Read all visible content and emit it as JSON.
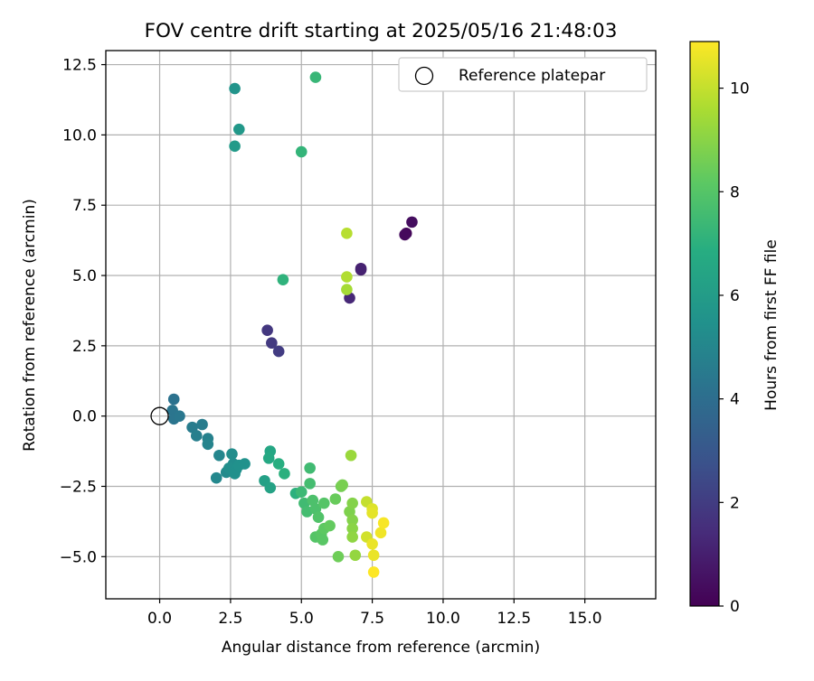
{
  "chart_data": {
    "type": "scatter",
    "title": "FOV centre drift starting at 2025/05/16 21:48:03",
    "xlabel": "Angular distance from reference (arcmin)",
    "ylabel": "Rotation from reference (arcmin)",
    "xlim": [
      -1.9,
      17.5
    ],
    "ylim": [
      -6.5,
      13.0
    ],
    "xticks": [
      0.0,
      2.5,
      5.0,
      7.5,
      10.0,
      12.5,
      15.0
    ],
    "xtick_labels": [
      "0.0",
      "2.5",
      "5.0",
      "7.5",
      "10.0",
      "12.5",
      "15.0"
    ],
    "yticks": [
      -5.0,
      -2.5,
      0.0,
      2.5,
      5.0,
      7.5,
      10.0,
      12.5
    ],
    "ytick_labels": [
      "−5.0",
      "−2.5",
      "0.0",
      "2.5",
      "5.0",
      "7.5",
      "10.0",
      "12.5"
    ],
    "grid": true,
    "legend": {
      "position": "top-right",
      "entries": [
        {
          "label": "Reference platepar",
          "marker": "open-circle",
          "x": 0.0,
          "y": 0.0
        }
      ]
    },
    "colorbar": {
      "label": "Hours from first FF file",
      "colormap": "viridis",
      "range": [
        0,
        10.9
      ],
      "ticks": [
        0,
        2,
        4,
        6,
        8,
        10
      ],
      "tick_labels": [
        "0",
        "2",
        "4",
        "6",
        "8",
        "10"
      ]
    },
    "series": [
      {
        "points": [
          {
            "x": 8.7,
            "y": 6.5,
            "h": 0.2
          },
          {
            "x": 8.65,
            "y": 6.45,
            "h": 0.3
          },
          {
            "x": 8.9,
            "y": 6.9,
            "h": 0.4
          },
          {
            "x": 7.1,
            "y": 5.2,
            "h": 1.0
          },
          {
            "x": 7.1,
            "y": 5.25,
            "h": 1.1
          },
          {
            "x": 6.7,
            "y": 4.2,
            "h": 1.3
          },
          {
            "x": 3.8,
            "y": 3.05,
            "h": 1.8
          },
          {
            "x": 3.95,
            "y": 2.6,
            "h": 1.9
          },
          {
            "x": 4.2,
            "y": 2.3,
            "h": 2.0
          },
          {
            "x": 0.5,
            "y": 0.6,
            "h": 4.2
          },
          {
            "x": 0.45,
            "y": 0.2,
            "h": 4.3
          },
          {
            "x": 0.5,
            "y": -0.1,
            "h": 4.3
          },
          {
            "x": 0.7,
            "y": 0.0,
            "h": 4.4
          },
          {
            "x": 1.15,
            "y": -0.4,
            "h": 4.6
          },
          {
            "x": 1.5,
            "y": -0.3,
            "h": 4.6
          },
          {
            "x": 1.3,
            "y": -0.7,
            "h": 4.7
          },
          {
            "x": 1.7,
            "y": -0.8,
            "h": 4.8
          },
          {
            "x": 1.7,
            "y": -1.0,
            "h": 4.9
          },
          {
            "x": 2.1,
            "y": -1.4,
            "h": 5.0
          },
          {
            "x": 2.0,
            "y": -2.2,
            "h": 5.1
          },
          {
            "x": 2.35,
            "y": -2.0,
            "h": 5.2
          },
          {
            "x": 2.55,
            "y": -1.35,
            "h": 5.3
          },
          {
            "x": 2.6,
            "y": -1.7,
            "h": 5.3
          },
          {
            "x": 2.45,
            "y": -1.85,
            "h": 5.35
          },
          {
            "x": 2.7,
            "y": -1.9,
            "h": 5.4
          },
          {
            "x": 2.65,
            "y": -2.05,
            "h": 5.4
          },
          {
            "x": 2.8,
            "y": -1.75,
            "h": 5.45
          },
          {
            "x": 3.0,
            "y": -1.7,
            "h": 5.5
          },
          {
            "x": 2.65,
            "y": 11.65,
            "h": 5.6
          },
          {
            "x": 2.8,
            "y": 10.2,
            "h": 5.8
          },
          {
            "x": 2.65,
            "y": 9.6,
            "h": 5.9
          },
          {
            "x": 3.7,
            "y": -2.3,
            "h": 6.2
          },
          {
            "x": 3.9,
            "y": -2.55,
            "h": 6.3
          },
          {
            "x": 3.9,
            "y": -1.25,
            "h": 6.5
          },
          {
            "x": 3.85,
            "y": -1.5,
            "h": 6.6
          },
          {
            "x": 4.2,
            "y": -1.7,
            "h": 6.9
          },
          {
            "x": 4.4,
            "y": -2.05,
            "h": 7.0
          },
          {
            "x": 4.8,
            "y": -2.75,
            "h": 7.0
          },
          {
            "x": 4.35,
            "y": 4.85,
            "h": 7.1
          },
          {
            "x": 5.0,
            "y": 9.4,
            "h": 7.2
          },
          {
            "x": 5.5,
            "y": 12.05,
            "h": 7.3
          },
          {
            "x": 5.0,
            "y": -2.7,
            "h": 7.4
          },
          {
            "x": 5.1,
            "y": -3.1,
            "h": 7.5
          },
          {
            "x": 5.2,
            "y": -3.4,
            "h": 7.6
          },
          {
            "x": 5.3,
            "y": -1.85,
            "h": 7.5
          },
          {
            "x": 5.3,
            "y": -2.4,
            "h": 7.6
          },
          {
            "x": 5.4,
            "y": -3.0,
            "h": 7.8
          },
          {
            "x": 5.5,
            "y": -3.3,
            "h": 7.8
          },
          {
            "x": 5.6,
            "y": -3.6,
            "h": 7.9
          },
          {
            "x": 5.8,
            "y": -3.1,
            "h": 8.0
          },
          {
            "x": 5.5,
            "y": -4.3,
            "h": 8.0
          },
          {
            "x": 5.7,
            "y": -4.2,
            "h": 8.1
          },
          {
            "x": 5.75,
            "y": -4.4,
            "h": 8.1
          },
          {
            "x": 5.8,
            "y": -4.0,
            "h": 8.2
          },
          {
            "x": 6.0,
            "y": -3.9,
            "h": 8.3
          },
          {
            "x": 6.2,
            "y": -2.95,
            "h": 8.4
          },
          {
            "x": 6.3,
            "y": -5.0,
            "h": 8.5
          },
          {
            "x": 6.4,
            "y": -2.5,
            "h": 8.6
          },
          {
            "x": 6.45,
            "y": -2.45,
            "h": 8.7
          },
          {
            "x": 6.7,
            "y": -3.4,
            "h": 8.8
          },
          {
            "x": 6.8,
            "y": -3.1,
            "h": 8.9
          },
          {
            "x": 6.8,
            "y": -3.7,
            "h": 8.9
          },
          {
            "x": 6.8,
            "y": -4.0,
            "h": 9.0
          },
          {
            "x": 6.8,
            "y": -4.3,
            "h": 9.1
          },
          {
            "x": 6.9,
            "y": -4.95,
            "h": 9.2
          },
          {
            "x": 6.75,
            "y": -1.4,
            "h": 9.3
          },
          {
            "x": 6.6,
            "y": 4.5,
            "h": 9.5
          },
          {
            "x": 6.6,
            "y": 4.95,
            "h": 9.7
          },
          {
            "x": 6.6,
            "y": 6.5,
            "h": 9.8
          },
          {
            "x": 7.3,
            "y": -3.05,
            "h": 10.0
          },
          {
            "x": 7.3,
            "y": -4.3,
            "h": 10.2
          },
          {
            "x": 7.5,
            "y": -3.3,
            "h": 10.4
          },
          {
            "x": 7.5,
            "y": -3.45,
            "h": 10.5
          },
          {
            "x": 7.5,
            "y": -4.55,
            "h": 10.6
          },
          {
            "x": 7.55,
            "y": -4.95,
            "h": 10.6
          },
          {
            "x": 7.8,
            "y": -4.15,
            "h": 10.7
          },
          {
            "x": 7.9,
            "y": -3.8,
            "h": 10.8
          },
          {
            "x": 7.55,
            "y": -5.55,
            "h": 10.9
          }
        ]
      }
    ]
  }
}
